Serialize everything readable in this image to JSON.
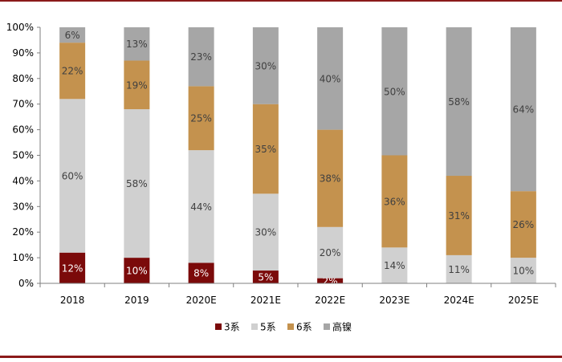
{
  "colors": {
    "frame": "#8B1A1A",
    "axis": "#7f7f7f",
    "label_text": "#404040"
  },
  "chart_data": {
    "type": "bar",
    "stacked": true,
    "categories": [
      "2018",
      "2019",
      "2020E",
      "2021E",
      "2022E",
      "2023E",
      "2024E",
      "2025E"
    ],
    "ylim": [
      0,
      100
    ],
    "yticks": [
      "0%",
      "10%",
      "20%",
      "30%",
      "40%",
      "50%",
      "60%",
      "70%",
      "80%",
      "90%",
      "100%"
    ],
    "legend_position": "bottom",
    "series": [
      {
        "name": "3系",
        "color": "#7b0a0a",
        "values": [
          12,
          10,
          8,
          5,
          2,
          0,
          0,
          0
        ],
        "labels": [
          "12%",
          "10%",
          "8%",
          "5%",
          "2%",
          "",
          "",
          ""
        ]
      },
      {
        "name": "5系",
        "color": "#d0d0d0",
        "values": [
          60,
          58,
          44,
          30,
          20,
          14,
          11,
          10
        ],
        "labels": [
          "60%",
          "58%",
          "44%",
          "30%",
          "20%",
          "14%",
          "11%",
          "10%"
        ]
      },
      {
        "name": "6系",
        "color": "#c4924e",
        "values": [
          22,
          19,
          25,
          35,
          38,
          36,
          31,
          26
        ],
        "labels": [
          "22%",
          "19%",
          "25%",
          "35%",
          "38%",
          "36%",
          "31%",
          "26%"
        ]
      },
      {
        "name": "高镍",
        "color": "#a6a6a6",
        "values": [
          6,
          13,
          23,
          30,
          40,
          50,
          58,
          64
        ],
        "labels": [
          "6%",
          "13%",
          "23%",
          "30%",
          "40%",
          "50%",
          "58%",
          "64%"
        ]
      }
    ]
  }
}
